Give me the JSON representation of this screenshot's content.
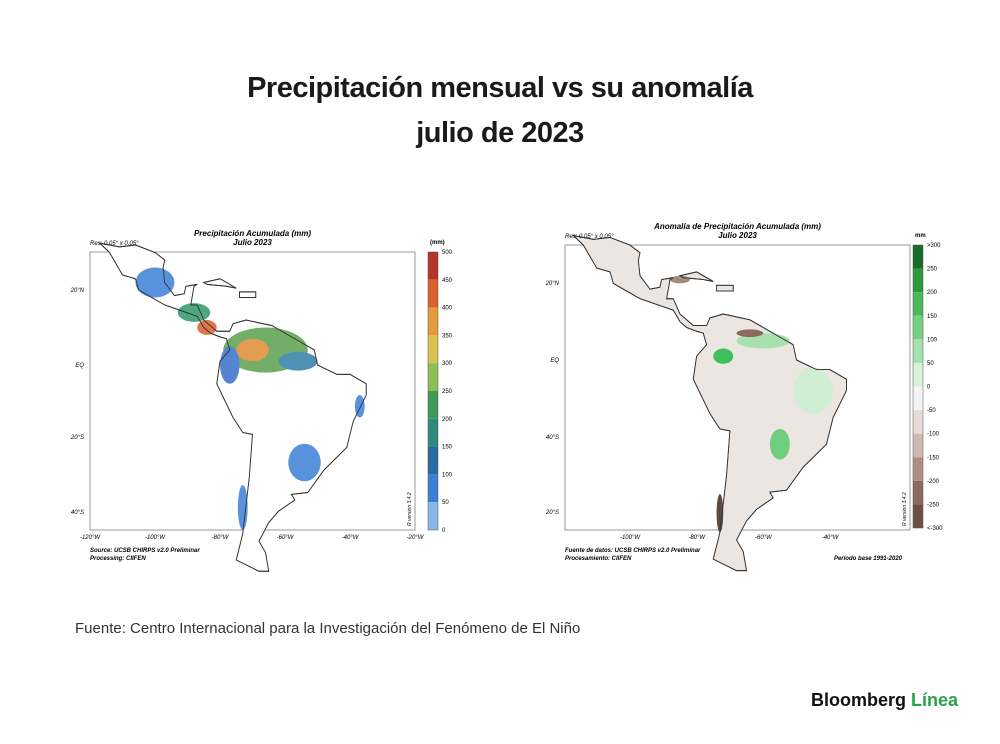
{
  "header": {
    "title_lines": [
      "Precipitación mensual vs su anomalía",
      "julio de 2023"
    ]
  },
  "maps": [
    {
      "title": "Precipitación Acumulada (mm)",
      "subtitle": "Julio 2023",
      "resolution": "Res: 0.05° x 0.05°",
      "unit": "(mm)",
      "colorbar_labels": [
        "500",
        "450",
        "400",
        "350",
        "300",
        "250",
        "200",
        "150",
        "100",
        "50",
        "0"
      ],
      "lat_labels": [
        "20°N",
        "EQ",
        "20°S",
        "40°S"
      ],
      "lon_labels": [
        "-120°W",
        "-100°W",
        "-80°W",
        "-60°W",
        "-40°W",
        "-20°W"
      ],
      "version": "R version 3.4.2",
      "source_lines": [
        "Source: UCSB CHIRPS v2.0 Preliminar",
        "Processing: CIIFEN"
      ]
    },
    {
      "title": "Anomalía de Precipitación Acumulada (mm)",
      "subtitle": "Julio 2023",
      "resolution": "Res: 0.05° x 0.05°",
      "unit": "mm",
      "colorbar_labels": [
        ">300",
        "250",
        "200",
        "150",
        "100",
        "50",
        "0",
        "-50",
        "-100",
        "-150",
        "-200",
        "-250",
        "<-300"
      ],
      "lat_labels": [
        "20°N",
        "EQ",
        "40°S",
        "20°S"
      ],
      "lon_labels": [
        "-100°W",
        "-80°W",
        "-60°W",
        "-40°W"
      ],
      "version": "R version 3.4.2",
      "source_lines": [
        "Fuente de datos: UCSB CHIRPS v2.0 Preliminar",
        "Procesamiento: CIIFEN"
      ],
      "base_period": "Período base 1991-2020"
    }
  ],
  "footer": {
    "source": "Fuente: Centro Internacional para la Investigación del Fenómeno de El Niño",
    "brand": "Bloomberg",
    "brand_accent": "Línea"
  }
}
